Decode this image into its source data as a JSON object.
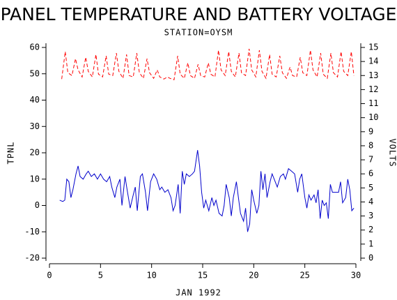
{
  "chart_data": {
    "type": "line",
    "title": "PANEL TEMPERATURE AND BATTERY VOLTAGE",
    "subtitle": "STATION=OYSM",
    "x_label": "JAN 1992",
    "y_label": "TPNL",
    "y2_label": "VOLTS",
    "xlim": [
      0,
      30
    ],
    "xticks": [
      0,
      5,
      10,
      15,
      20,
      25,
      30
    ],
    "ylim": [
      -20,
      60
    ],
    "yticks": [
      -20,
      -10,
      0,
      10,
      20,
      30,
      40,
      50,
      60
    ],
    "y2lim": [
      0,
      15
    ],
    "y2ticks": [
      0,
      1,
      2,
      3,
      4,
      5,
      6,
      7,
      8,
      9,
      10,
      11,
      12,
      13,
      14,
      15
    ],
    "series": [
      {
        "color": "#0000cc",
        "dash": false,
        "x": [
          1.0,
          1.3,
          1.5,
          1.7,
          1.9,
          2.1,
          2.3,
          2.6,
          2.8,
          3.0,
          3.3,
          3.6,
          3.8,
          4.1,
          4.4,
          4.7,
          5.0,
          5.3,
          5.6,
          5.9,
          6.1,
          6.4,
          6.6,
          6.9,
          7.1,
          7.4,
          7.6,
          7.9,
          8.2,
          8.4,
          8.6,
          8.9,
          9.1,
          9.4,
          9.6,
          9.9,
          10.2,
          10.5,
          10.8,
          11.0,
          11.3,
          11.6,
          11.9,
          12.1,
          12.3,
          12.6,
          12.8,
          13.0,
          13.2,
          13.4,
          13.7,
          14.0,
          14.2,
          14.5,
          14.7,
          14.9,
          15.1,
          15.3,
          15.6,
          15.9,
          16.1,
          16.3,
          16.6,
          16.9,
          17.1,
          17.3,
          17.6,
          17.8,
          18.0,
          18.3,
          18.5,
          18.7,
          19.0,
          19.2,
          19.4,
          19.6,
          19.8,
          20.0,
          20.3,
          20.5,
          20.7,
          20.9,
          21.1,
          21.3,
          21.6,
          21.8,
          22.0,
          22.3,
          22.6,
          22.9,
          23.1,
          23.4,
          23.7,
          24.0,
          24.3,
          24.5,
          24.7,
          25.0,
          25.2,
          25.4,
          25.6,
          25.9,
          26.1,
          26.3,
          26.5,
          26.7,
          26.9,
          27.1,
          27.3,
          27.5,
          27.7,
          28.0,
          28.3,
          28.5,
          28.7,
          29.0,
          29.2,
          29.4,
          29.6,
          29.8
        ],
        "values": [
          2,
          1.5,
          2,
          10,
          9,
          3,
          6,
          12,
          15,
          11,
          10,
          12,
          13,
          11,
          12,
          10,
          12,
          10,
          9,
          11,
          7,
          3,
          7,
          10,
          0,
          11,
          6,
          -1,
          4,
          7,
          -2,
          11,
          12,
          5,
          -2,
          9,
          12,
          10,
          6,
          7,
          5,
          6,
          3,
          -2,
          0,
          8,
          -3,
          13,
          8,
          12,
          11,
          12,
          13,
          21,
          15,
          5,
          -1,
          2,
          -2,
          3,
          0,
          2,
          -3,
          -4,
          0,
          8,
          3,
          -4,
          3,
          9,
          3,
          -3,
          -6,
          -1,
          -10,
          -7,
          6,
          2,
          -3,
          0,
          13,
          6,
          12,
          3,
          9,
          12,
          10,
          7,
          11,
          12,
          10,
          14,
          13,
          12,
          5,
          10,
          12,
          3,
          -1,
          4,
          2,
          4,
          1,
          6,
          -5,
          2,
          0,
          1,
          -5,
          8,
          5,
          5,
          5,
          9,
          1,
          3,
          10,
          6,
          -2,
          -1
        ]
      },
      {
        "color": "#ff0000",
        "dash": true,
        "axis": "y2",
        "x": [
          1.2,
          1.55,
          1.8,
          2.2,
          2.55,
          2.8,
          3.2,
          3.55,
          3.8,
          4.2,
          4.55,
          4.8,
          5.2,
          5.55,
          5.8,
          6.2,
          6.55,
          6.8,
          7.2,
          7.55,
          7.8,
          8.2,
          8.55,
          8.8,
          9.2,
          9.55,
          9.8,
          10.2,
          10.55,
          10.8,
          11.2,
          11.55,
          11.8,
          12.2,
          12.55,
          12.8,
          13.2,
          13.55,
          13.8,
          14.2,
          14.55,
          14.8,
          15.2,
          15.55,
          15.8,
          16.2,
          16.55,
          16.8,
          17.2,
          17.55,
          17.8,
          18.2,
          18.55,
          18.8,
          19.2,
          19.55,
          19.8,
          20.2,
          20.55,
          20.8,
          21.2,
          21.55,
          21.8,
          22.2,
          22.55,
          22.8,
          23.2,
          23.55,
          23.8,
          24.2,
          24.55,
          24.8,
          25.2,
          25.55,
          25.8,
          26.2,
          26.55,
          26.8,
          27.2,
          27.55,
          27.8,
          28.2,
          28.55,
          28.8,
          29.2,
          29.55,
          29.8
        ],
        "values": [
          12.75,
          14.7,
          13.2,
          13.0,
          14.2,
          13.4,
          12.9,
          14.3,
          13.3,
          12.9,
          14.5,
          13.1,
          12.9,
          14.4,
          13.1,
          13.0,
          14.6,
          13.3,
          12.8,
          14.5,
          13.0,
          12.9,
          14.6,
          13.2,
          12.8,
          14.2,
          13.2,
          12.8,
          13.4,
          12.9,
          12.75,
          12.9,
          12.8,
          12.7,
          14.4,
          13.1,
          12.8,
          13.9,
          13.0,
          12.8,
          13.8,
          13.0,
          12.9,
          13.9,
          13.1,
          12.9,
          14.8,
          13.4,
          13.0,
          14.7,
          13.3,
          12.9,
          14.6,
          13.2,
          13.0,
          14.9,
          13.4,
          12.9,
          14.8,
          13.3,
          12.8,
          14.5,
          13.1,
          12.9,
          14.4,
          13.2,
          12.8,
          13.6,
          13.0,
          12.9,
          14.3,
          13.2,
          13.0,
          14.8,
          13.4,
          12.9,
          14.6,
          13.1,
          12.8,
          14.6,
          13.2,
          12.9,
          14.7,
          13.3,
          13.0,
          14.7,
          13.0
        ]
      }
    ]
  }
}
